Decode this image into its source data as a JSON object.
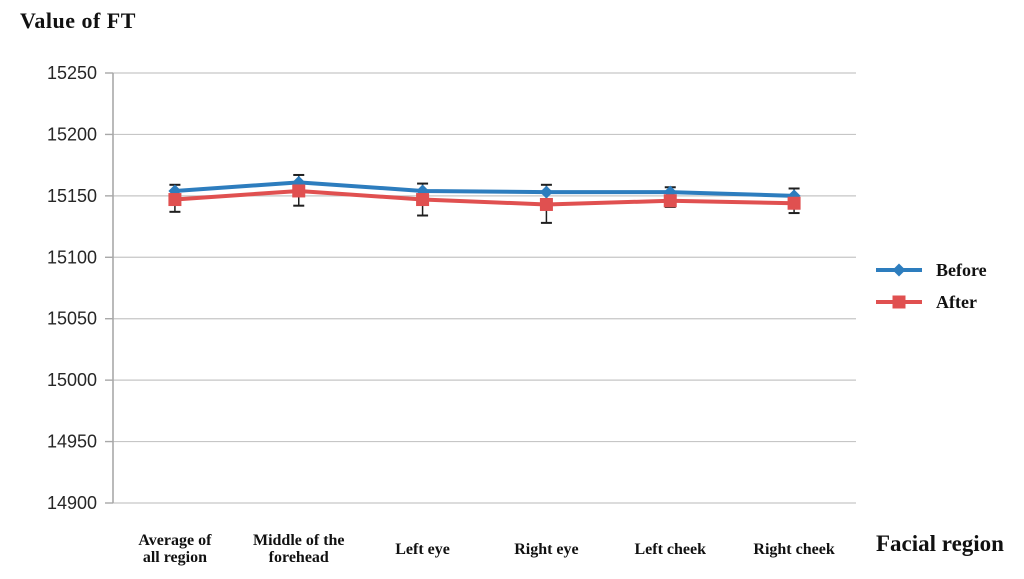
{
  "chart_data": {
    "type": "line",
    "ylabel": "Value of FT",
    "xlabel": "Facial region",
    "categories": [
      "Average of all region",
      "Middle of the forehead",
      "Left eye",
      "Right eye",
      "Left cheek",
      "Right cheek"
    ],
    "categories_wrapped": [
      [
        "Average of",
        "all region"
      ],
      [
        "Middle of the",
        "forehead"
      ],
      [
        "Left eye"
      ],
      [
        "Right eye"
      ],
      [
        "Left cheek"
      ],
      [
        "Right cheek"
      ]
    ],
    "series": [
      {
        "name": "Before",
        "marker": "diamond",
        "color": "#2D7DBE",
        "values": [
          15154,
          15161,
          15154,
          15153,
          15153,
          15150
        ]
      },
      {
        "name": "After",
        "marker": "square",
        "color": "#E05050",
        "values": [
          15147,
          15154,
          15147,
          15143,
          15146,
          15144
        ]
      }
    ],
    "error_bars": [
      {
        "top": 15159,
        "bottom": 15137
      },
      {
        "top": 15167,
        "bottom": 15142
      },
      {
        "top": 15160,
        "bottom": 15134
      },
      {
        "top": 15159,
        "bottom": 15128
      },
      {
        "top": 15157,
        "bottom": 15141
      },
      {
        "top": 15156,
        "bottom": 15136
      }
    ],
    "yticks": [
      15250,
      15200,
      15150,
      15100,
      15050,
      15000,
      14950,
      14900
    ],
    "ylim": [
      14900,
      15250
    ],
    "grid": true,
    "legend_position": "right",
    "colors": {
      "grid": "#C6C6C6",
      "axis": "#A8A8A8",
      "error": "#1F1F1F",
      "text": "#262626"
    }
  }
}
